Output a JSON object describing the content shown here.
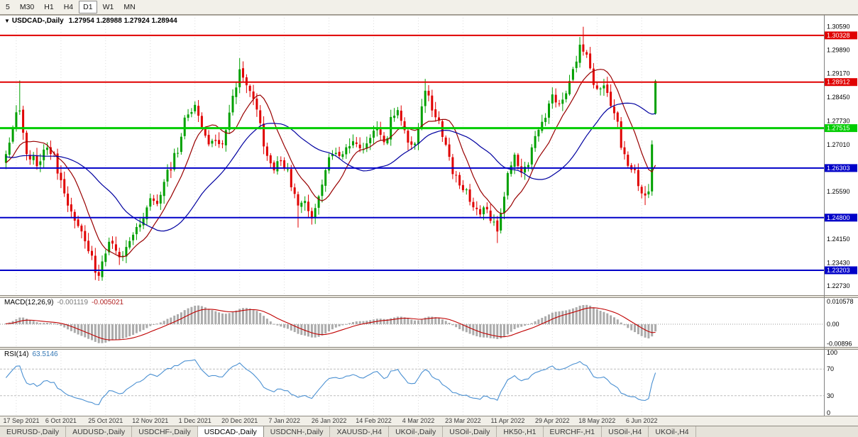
{
  "toolbar": {
    "timeframes": [
      "5",
      "M30",
      "H1",
      "H4",
      "D1",
      "W1",
      "MN"
    ],
    "active": "D1"
  },
  "chart": {
    "title": "USDCAD-,Daily",
    "ohlc_text": "1.27954 1.28988 1.27924 1.28944",
    "symbol_icon": "▼"
  },
  "indicators": {
    "macd_label": "MACD(12,26,9)",
    "macd_main_value": "-0.001119",
    "macd_signal_value": "-0.005021",
    "rsi_label": "RSI(14)",
    "rsi_value": "63.5146"
  },
  "chart_data": {
    "type": "candlestick",
    "title": "USDCAD-,Daily",
    "last_ohlc": {
      "open": 1.27954,
      "high": 1.28988,
      "low": 1.27924,
      "close": 1.28944
    },
    "num_candles": 190,
    "up_color": "#00A000",
    "down_color": "#E00000",
    "y_axis": {
      "min": 1.2245,
      "max": 1.3095,
      "ticks": [
        "1.30590",
        "1.29890",
        "1.29170",
        "1.28450",
        "1.27730",
        "1.27010",
        "1.25590",
        "1.24150",
        "1.23430",
        "1.22730"
      ]
    },
    "x_ticks": [
      {
        "i": 3,
        "label": "17 Sep 2021"
      },
      {
        "i": 16,
        "label": "6 Oct 2021"
      },
      {
        "i": 29,
        "label": "25 Oct 2021"
      },
      {
        "i": 42,
        "label": "12 Nov 2021"
      },
      {
        "i": 55,
        "label": "1 Dec 2021"
      },
      {
        "i": 68,
        "label": "20 Dec 2021"
      },
      {
        "i": 81,
        "label": "7 Jan 2022"
      },
      {
        "i": 94,
        "label": "26 Jan 2022"
      },
      {
        "i": 107,
        "label": "14 Feb 2022"
      },
      {
        "i": 120,
        "label": "4 Mar 2022"
      },
      {
        "i": 133,
        "label": "23 Mar 2022"
      },
      {
        "i": 146,
        "label": "11 Apr 2022"
      },
      {
        "i": 159,
        "label": "29 Apr 2022"
      },
      {
        "i": 172,
        "label": "18 May 2022"
      },
      {
        "i": 185,
        "label": "6 Jun 2022"
      }
    ],
    "levels": [
      {
        "price": 1.30328,
        "label": "1.30328",
        "color": "#E00000",
        "width": 2
      },
      {
        "price": 1.28912,
        "label": "1.28912",
        "color": "#E00000",
        "width": 2
      },
      {
        "price": 1.27515,
        "label": "1.27515",
        "color": "#00CC00",
        "width": 3
      },
      {
        "price": 1.26303,
        "label": "1.26303",
        "color": "#0000C8",
        "width": 2
      },
      {
        "price": 1.248,
        "label": "1.24800",
        "color": "#0000C8",
        "width": 2
      },
      {
        "price": 1.23203,
        "label": "1.23203",
        "color": "#0000C8",
        "width": 2
      }
    ],
    "pre_anchors": [
      [
        -60,
        1.248
      ],
      [
        -50,
        1.2555
      ],
      [
        -42,
        1.2495
      ],
      [
        -34,
        1.265
      ],
      [
        -28,
        1.2775
      ],
      [
        -24,
        1.2655
      ],
      [
        -18,
        1.269
      ],
      [
        -12,
        1.26
      ],
      [
        -6,
        1.2645
      ],
      [
        -1,
        1.2655
      ]
    ],
    "anchors": [
      [
        0,
        1.2665
      ],
      [
        2,
        1.2745
      ],
      [
        4,
        1.2815
      ],
      [
        6,
        1.268
      ],
      [
        9,
        1.2635
      ],
      [
        12,
        1.2705
      ],
      [
        14,
        1.2665
      ],
      [
        16,
        1.258
      ],
      [
        18,
        1.2525
      ],
      [
        20,
        1.2472
      ],
      [
        22,
        1.2432
      ],
      [
        24,
        1.2378
      ],
      [
        26,
        1.2335
      ],
      [
        27,
        1.2315
      ],
      [
        29,
        1.2372
      ],
      [
        31,
        1.2398
      ],
      [
        33,
        1.2362
      ],
      [
        36,
        1.2402
      ],
      [
        38,
        1.2448
      ],
      [
        40,
        1.2492
      ],
      [
        42,
        1.2542
      ],
      [
        44,
        1.2512
      ],
      [
        46,
        1.2598
      ],
      [
        48,
        1.2642
      ],
      [
        50,
        1.2678
      ],
      [
        52,
        1.2782
      ],
      [
        54,
        1.2808
      ],
      [
        55,
        1.2825
      ],
      [
        57,
        1.2748
      ],
      [
        59,
        1.2698
      ],
      [
        61,
        1.2732
      ],
      [
        63,
        1.2702
      ],
      [
        65,
        1.2792
      ],
      [
        67,
        1.2882
      ],
      [
        68,
        1.2928
      ],
      [
        70,
        1.2892
      ],
      [
        72,
        1.2828
      ],
      [
        74,
        1.2772
      ],
      [
        76,
        1.2662
      ],
      [
        78,
        1.2632
      ],
      [
        80,
        1.2658
      ],
      [
        82,
        1.2628
      ],
      [
        84,
        1.2548
      ],
      [
        85,
        1.2508
      ],
      [
        87,
        1.2528
      ],
      [
        89,
        1.2488
      ],
      [
        91,
        1.2548
      ],
      [
        93,
        1.2612
      ],
      [
        94,
        1.2658
      ],
      [
        96,
        1.2682
      ],
      [
        98,
        1.2668
      ],
      [
        100,
        1.2702
      ],
      [
        102,
        1.2718
      ],
      [
        104,
        1.2682
      ],
      [
        106,
        1.2722
      ],
      [
        108,
        1.2748
      ],
      [
        110,
        1.2712
      ],
      [
        112,
        1.2768
      ],
      [
        114,
        1.2792
      ],
      [
        116,
        1.2748
      ],
      [
        118,
        1.2698
      ],
      [
        120,
        1.2738
      ],
      [
        122,
        1.2868
      ],
      [
        124,
        1.2818
      ],
      [
        126,
        1.2762
      ],
      [
        128,
        1.2692
      ],
      [
        130,
        1.2628
      ],
      [
        132,
        1.2588
      ],
      [
        133,
        1.2558
      ],
      [
        135,
        1.2528
      ],
      [
        137,
        1.2498
      ],
      [
        139,
        1.2518
      ],
      [
        141,
        1.2478
      ],
      [
        143,
        1.2438
      ],
      [
        145,
        1.2552
      ],
      [
        146,
        1.2628
      ],
      [
        148,
        1.2658
      ],
      [
        150,
        1.2608
      ],
      [
        152,
        1.2662
      ],
      [
        154,
        1.2718
      ],
      [
        156,
        1.2762
      ],
      [
        158,
        1.2822
      ],
      [
        159,
        1.2858
      ],
      [
        161,
        1.2812
      ],
      [
        163,
        1.2848
      ],
      [
        165,
        1.2932
      ],
      [
        167,
        1.3008
      ],
      [
        168,
        1.2988
      ],
      [
        170,
        1.2922
      ],
      [
        172,
        1.2868
      ],
      [
        174,
        1.2888
      ],
      [
        176,
        1.2818
      ],
      [
        178,
        1.2762
      ],
      [
        180,
        1.2668
      ],
      [
        182,
        1.2622
      ],
      [
        184,
        1.2582
      ],
      [
        186,
        1.2548
      ],
      [
        187,
        1.2582
      ],
      [
        188,
        1.2702
      ],
      [
        189,
        1.28944
      ]
    ],
    "wick_events": [
      [
        4,
        "h",
        1.2896
      ],
      [
        27,
        "l",
        1.2288
      ],
      [
        68,
        "h",
        1.2964
      ],
      [
        85,
        "l",
        1.245
      ],
      [
        122,
        "h",
        1.2901
      ],
      [
        143,
        "l",
        1.2403
      ],
      [
        168,
        "h",
        1.3059
      ],
      [
        186,
        "l",
        1.2518
      ]
    ],
    "ma": [
      {
        "period": 10,
        "color": "#990000"
      },
      {
        "period": 30,
        "color": "#0000A0"
      }
    ],
    "macd": {
      "fast": 12,
      "slow": 26,
      "signal": 9,
      "max": 0.0125,
      "min": -0.0105,
      "scale_labels": [
        "0.010578",
        "0.00",
        "-0.00896"
      ],
      "hist_color": "#ABABAB",
      "signal_color": "#C00000"
    },
    "rsi": {
      "period": 14,
      "levels": [
        70,
        30
      ],
      "scale_labels": [
        "100",
        "70",
        "30",
        "0"
      ],
      "color": "#4A90D2"
    }
  },
  "tabs": [
    {
      "label": "EURUSD-,Daily",
      "active": false
    },
    {
      "label": "AUDUSD-,Daily",
      "active": false
    },
    {
      "label": "USDCHF-,Daily",
      "active": false
    },
    {
      "label": "USDCAD-,Daily",
      "active": true
    },
    {
      "label": "USDCNH-,Daily",
      "active": false
    },
    {
      "label": "XAUUSD-,H4",
      "active": false
    },
    {
      "label": "UKOil-,Daily",
      "active": false
    },
    {
      "label": "USOil-,Daily",
      "active": false
    },
    {
      "label": "HK50-,H1",
      "active": false
    },
    {
      "label": "EURCHF-,H1",
      "active": false
    },
    {
      "label": "USOil-,H4",
      "active": false
    },
    {
      "label": "UKOil-,H4",
      "active": false
    }
  ]
}
